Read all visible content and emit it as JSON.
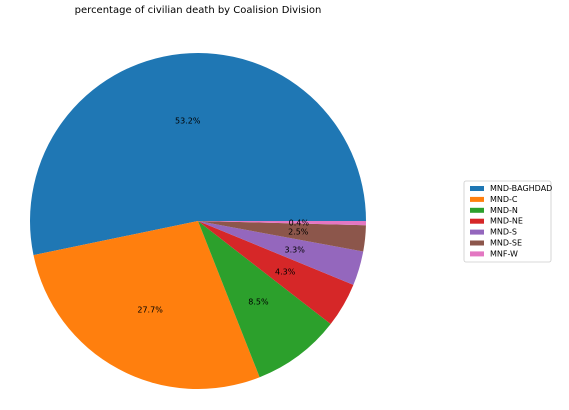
{
  "chart_data": {
    "type": "pie",
    "title": "percentage of civilian death by Coalision Division",
    "categories": [
      "MND-BAGHDAD",
      "MND-C",
      "MND-N",
      "MND-NE",
      "MND-S",
      "MND-SE",
      "MNF-W"
    ],
    "values": [
      53.2,
      27.7,
      8.5,
      4.3,
      3.3,
      2.5,
      0.4
    ],
    "labels": [
      "53.2%",
      "27.7%",
      "8.5%",
      "4.3%",
      "3.3%",
      "2.5%",
      "0.4%"
    ],
    "colors": [
      "#1f77b4",
      "#ff7f0e",
      "#2ca02c",
      "#d62728",
      "#9467bd",
      "#8c564b",
      "#e377c2"
    ],
    "start_angle_deg": 0,
    "direction": "counterclockwise",
    "legend_position": "right"
  }
}
